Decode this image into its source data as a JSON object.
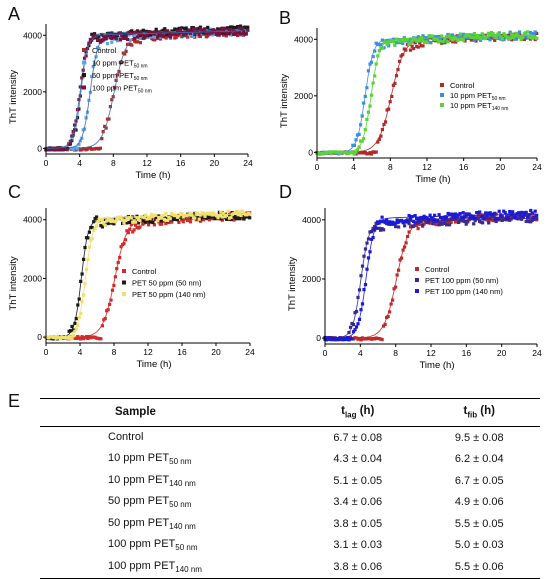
{
  "panels": [
    {
      "letter": "A",
      "ylabel": "ThT intensity",
      "xlabel": "Time (h)",
      "legend": [
        {
          "label": "Control",
          "color": "#b02a2a",
          "sub": ""
        },
        {
          "label": "10 ppm PET",
          "color": "#5aa7e8",
          "sub": "50 nm"
        },
        {
          "label": "50 ppm PET",
          "color": "#1a1a1a",
          "sub": "50 nm"
        },
        {
          "label": "100 ppm PET",
          "color": "#7a1040",
          "sub": "50 nm"
        }
      ]
    },
    {
      "letter": "B",
      "ylabel": "ThT intensity",
      "xlabel": "Time (h)",
      "legend": [
        {
          "label": "Control",
          "color": "#b02a2a",
          "sub": ""
        },
        {
          "label": "10 ppm PET",
          "color": "#3a8fe0",
          "sub": "50 nm"
        },
        {
          "label": "10 ppm PET",
          "color": "#5ad23a",
          "sub": "140 nm"
        }
      ]
    },
    {
      "letter": "C",
      "ylabel": "ThT intensity",
      "xlabel": "Time (h)",
      "legend": [
        {
          "label": "Control",
          "color": "#d42a2a",
          "sub": ""
        },
        {
          "label": "PET 50 ppm (50 nm)",
          "color": "#1a1a1a",
          "sub": ""
        },
        {
          "label": "PET 50 ppm (140 nm)",
          "color": "#f0e070",
          "sub": ""
        }
      ]
    },
    {
      "letter": "D",
      "ylabel": "ThT intensity",
      "xlabel": "Time (h)",
      "legend": [
        {
          "label": "Control",
          "color": "#c02a2a",
          "sub": ""
        },
        {
          "label": "PET 100 ppm (50 nm)",
          "color": "#3a2a8a",
          "sub": ""
        },
        {
          "label": "PET 100 ppm (140 nm)",
          "color": "#1a1ad8",
          "sub": ""
        }
      ]
    }
  ],
  "table": {
    "letter": "E",
    "headers": {
      "sample": "Sample",
      "tlag": "t",
      "tlag_sub": "lag",
      "tlag_unit": " (h)",
      "tfib": "t",
      "tfib_sub": "fib",
      "tfib_unit": " (h)"
    },
    "rows": [
      {
        "sample": "Control",
        "sub": "",
        "tlag": "6.7 ± 0.08",
        "tfib": "9.5 ± 0.08"
      },
      {
        "sample": "10 ppm PET",
        "sub": "50 nm",
        "tlag": "4.3 ± 0.04",
        "tfib": "6.2 ± 0.04"
      },
      {
        "sample": "10 ppm PET",
        "sub": "140 nm",
        "tlag": "5.1 ± 0.05",
        "tfib": "6.7 ± 0.05"
      },
      {
        "sample": "50 ppm PET",
        "sub": "50 nm",
        "tlag": "3.4 ± 0.06",
        "tfib": "4.9 ± 0.06"
      },
      {
        "sample": "50 ppm PET",
        "sub": "140 nm",
        "tlag": "3.8 ± 0.05",
        "tfib": "5.5 ± 0.05"
      },
      {
        "sample": "100 ppm PET",
        "sub": "50 nm",
        "tlag": "3.1 ± 0.03",
        "tfib": "5.0 ± 0.03"
      },
      {
        "sample": "100 ppm PET",
        "sub": "140 nm",
        "tlag": "3.8 ± 0.06",
        "tfib": "5.5 ± 0.06"
      }
    ]
  },
  "chart_data": [
    {
      "type": "scatter",
      "panel": "A",
      "xlabel": "Time (h)",
      "ylabel": "ThT intensity",
      "xlim": [
        0,
        24
      ],
      "ylim": [
        -200,
        4400
      ],
      "xticks": [
        0,
        4,
        8,
        12,
        16,
        20,
        24
      ],
      "yticks": [
        0,
        2000,
        4000
      ],
      "series": [
        {
          "name": "Control",
          "color": "#b02a2a",
          "t50": 8.1,
          "width": 0.7,
          "plateau": 4000
        },
        {
          "name": "10 ppm PET 50 nm",
          "color": "#5aa7e8",
          "t50": 5.25,
          "width": 0.45,
          "plateau": 4000
        },
        {
          "name": "50 ppm PET 50 nm",
          "color": "#1a1a1a",
          "t50": 4.15,
          "width": 0.4,
          "plateau": 4050
        },
        {
          "name": "100 ppm PET 50 nm",
          "color": "#7a1040",
          "t50": 4.05,
          "width": 0.45,
          "plateau": 4000
        }
      ]
    },
    {
      "type": "scatter",
      "panel": "B",
      "xlabel": "Time (h)",
      "ylabel": "ThT intensity",
      "xlim": [
        0,
        24
      ],
      "ylim": [
        -200,
        4400
      ],
      "xticks": [
        0,
        4,
        8,
        12,
        16,
        20,
        24
      ],
      "yticks": [
        0,
        2000,
        4000
      ],
      "series": [
        {
          "name": "Control",
          "color": "#b02a2a",
          "t50": 8.1,
          "width": 0.7,
          "plateau": 4000
        },
        {
          "name": "10 ppm PET 50 nm",
          "color": "#3a8fe0",
          "t50": 5.25,
          "width": 0.45,
          "plateau": 4000
        },
        {
          "name": "10 ppm PET 140 nm",
          "color": "#5ad23a",
          "t50": 5.9,
          "width": 0.45,
          "plateau": 4000
        }
      ]
    },
    {
      "type": "scatter",
      "panel": "C",
      "xlabel": "Time (h)",
      "ylabel": "ThT intensity",
      "xlim": [
        0,
        24
      ],
      "ylim": [
        -200,
        4400
      ],
      "xticks": [
        0,
        4,
        8,
        12,
        16,
        20,
        24
      ],
      "yticks": [
        0,
        2000,
        4000
      ],
      "series": [
        {
          "name": "Control",
          "color": "#d42a2a",
          "t50": 8.1,
          "width": 0.7,
          "plateau": 4000
        },
        {
          "name": "PET 50 ppm (50 nm)",
          "color": "#1a1a1a",
          "t50": 4.15,
          "width": 0.4,
          "plateau": 4000
        },
        {
          "name": "PET 50 ppm (140 nm)",
          "color": "#f0e070",
          "t50": 4.65,
          "width": 0.45,
          "plateau": 4050
        }
      ]
    },
    {
      "type": "scatter",
      "panel": "D",
      "xlabel": "Time (h)",
      "ylabel": "ThT intensity",
      "xlim": [
        0,
        24
      ],
      "ylim": [
        -200,
        4400
      ],
      "xticks": [
        0,
        4,
        8,
        12,
        16,
        20,
        24
      ],
      "yticks": [
        0,
        2000,
        4000
      ],
      "series": [
        {
          "name": "Control",
          "color": "#c02a2a",
          "t50": 8.1,
          "width": 0.7,
          "plateau": 4000
        },
        {
          "name": "PET 100 ppm (50 nm)",
          "color": "#3a2a8a",
          "t50": 4.05,
          "width": 0.45,
          "plateau": 3900
        },
        {
          "name": "PET 100 ppm (140 nm)",
          "color": "#1a1ad8",
          "t50": 4.65,
          "width": 0.45,
          "plateau": 4050
        }
      ]
    }
  ]
}
